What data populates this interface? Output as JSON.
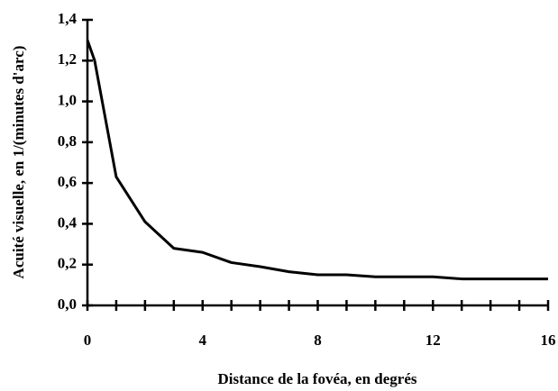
{
  "chart_data": {
    "type": "line",
    "xlabel": "Distance de la fovéa, en degrés",
    "ylabel": "Acuité visuelle, en 1/(minutes d'arc)",
    "x": [
      0,
      0.25,
      1,
      2,
      3,
      4,
      5,
      6,
      7,
      8,
      9,
      10,
      11,
      12,
      13,
      14,
      15,
      16
    ],
    "series": [
      {
        "color": "#000000",
        "values": [
          1.3,
          1.2,
          0.63,
          0.41,
          0.28,
          0.26,
          0.21,
          0.19,
          0.165,
          0.15,
          0.15,
          0.14,
          0.14,
          0.14,
          0.13,
          0.13,
          0.13,
          0.13
        ]
      }
    ],
    "xlim": [
      0,
      16
    ],
    "xticks": [
      0,
      4,
      8,
      12,
      16
    ],
    "ylim": [
      0,
      1.4
    ],
    "yticks": [
      {
        "value": 0,
        "label": "0,0"
      },
      {
        "value": 0.2,
        "label": "0,2"
      },
      {
        "value": 0.4,
        "label": "0,4"
      },
      {
        "value": 0.6,
        "label": "0,6"
      },
      {
        "value": 0.8,
        "label": "0,8"
      },
      {
        "value": 1.0,
        "label": "1,0"
      },
      {
        "value": 1.2,
        "label": "1,2"
      },
      {
        "value": 1.4,
        "label": "1,4"
      }
    ],
    "grid": false
  }
}
